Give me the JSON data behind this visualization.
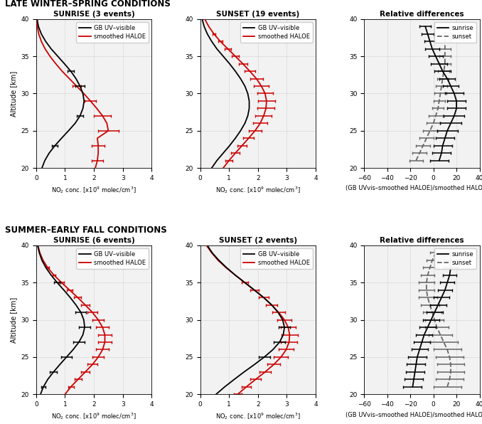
{
  "top_row_title": "LATE WINTER–SPRING CONDITIONS",
  "bottom_row_title": "SUMMER–EARLY FALL CONDITIONS",
  "subplot_titles": [
    [
      "SUNRISE (3 events)",
      "SUNSET (19 events)",
      "Relative differences"
    ],
    [
      "SUNRISE (6 events)",
      "SUNSET (2 events)",
      "Relative differences"
    ]
  ],
  "ylim": [
    20,
    40
  ],
  "yticks": [
    20,
    25,
    30,
    35,
    40
  ],
  "xlim_no2": [
    0,
    4
  ],
  "xticks_no2": [
    0,
    1,
    2,
    3,
    4
  ],
  "xlim_rel": [
    -60,
    40
  ],
  "xticks_rel": [
    -60,
    -40,
    -20,
    0,
    20,
    40
  ],
  "xlabel_no2": "NO$_2$ conc. [x10$^9$ molec/cm$^3$]",
  "xlabel_rel": "(GB UVvis–smoothed HALOE)/smoothed HALOE [%]",
  "ylabel": "Altitude [km]",
  "lw_profile": 1.3,
  "lw_err": 1.1,
  "top_sunrise": {
    "alt_gb": [
      20,
      21,
      22,
      23,
      24,
      25,
      26,
      27,
      28,
      29,
      30,
      31,
      32,
      33,
      34,
      35,
      36,
      37,
      38,
      39,
      40
    ],
    "gb": [
      0.2,
      0.3,
      0.45,
      0.65,
      0.88,
      1.12,
      1.35,
      1.52,
      1.62,
      1.66,
      1.62,
      1.52,
      1.38,
      1.2,
      0.98,
      0.75,
      0.52,
      0.33,
      0.18,
      0.08,
      0.03
    ],
    "gb_err_alts": [
      23,
      27,
      31,
      33
    ],
    "gb_err_vals": [
      0.65,
      1.52,
      1.52,
      1.2
    ],
    "gb_err_low": [
      0.1,
      0.12,
      0.15,
      0.12
    ],
    "gb_err_high": [
      0.1,
      0.12,
      0.15,
      0.12
    ],
    "alt_haloe": [
      20,
      21,
      22,
      23,
      24,
      25,
      26,
      27,
      28,
      29,
      30,
      31,
      32,
      33,
      34,
      35,
      36,
      37,
      38,
      39,
      40
    ],
    "haloe": [
      2.05,
      2.12,
      2.15,
      2.15,
      2.12,
      2.5,
      2.45,
      2.3,
      2.1,
      1.88,
      1.65,
      1.4,
      1.15,
      0.9,
      0.68,
      0.48,
      0.31,
      0.18,
      0.09,
      0.04,
      0.02
    ],
    "haloe_err_alts": [
      21,
      23,
      25,
      27,
      29,
      31
    ],
    "haloe_err_vals": [
      2.12,
      2.15,
      2.5,
      2.3,
      1.88,
      1.4
    ],
    "haloe_err_low": [
      0.2,
      0.22,
      0.35,
      0.3,
      0.2,
      0.15
    ],
    "haloe_err_high": [
      0.2,
      0.22,
      0.35,
      0.3,
      0.2,
      0.15
    ]
  },
  "top_sunset": {
    "alt_gb": [
      20,
      21,
      22,
      23,
      24,
      25,
      26,
      27,
      28,
      29,
      30,
      31,
      32,
      33,
      34,
      35,
      36,
      37,
      38,
      39,
      40
    ],
    "gb": [
      0.4,
      0.58,
      0.8,
      1.02,
      1.22,
      1.4,
      1.55,
      1.65,
      1.7,
      1.7,
      1.65,
      1.55,
      1.4,
      1.22,
      1.02,
      0.8,
      0.58,
      0.4,
      0.25,
      0.14,
      0.07
    ],
    "gb_err_alts": [],
    "gb_err_vals": [],
    "gb_err_low": [],
    "gb_err_high": [],
    "alt_haloe": [
      20,
      21,
      22,
      23,
      24,
      25,
      26,
      27,
      28,
      29,
      30,
      31,
      32,
      33,
      34,
      35,
      36,
      37,
      38,
      39,
      40
    ],
    "haloe": [
      0.8,
      1.0,
      1.22,
      1.45,
      1.68,
      1.9,
      2.08,
      2.2,
      2.28,
      2.3,
      2.25,
      2.12,
      1.95,
      1.72,
      1.48,
      1.22,
      0.96,
      0.7,
      0.48,
      0.3,
      0.16
    ],
    "haloe_err_alts": [
      21,
      22,
      23,
      24,
      25,
      26,
      27,
      28,
      29,
      30,
      31,
      32,
      33,
      34,
      35,
      36,
      37,
      38
    ],
    "haloe_err_vals": [
      1.0,
      1.22,
      1.45,
      1.68,
      1.9,
      2.08,
      2.2,
      2.28,
      2.3,
      2.25,
      2.12,
      1.95,
      1.72,
      1.48,
      1.22,
      0.96,
      0.7,
      0.48
    ],
    "haloe_err_low": [
      0.12,
      0.14,
      0.16,
      0.18,
      0.22,
      0.25,
      0.28,
      0.3,
      0.3,
      0.28,
      0.25,
      0.22,
      0.18,
      0.15,
      0.12,
      0.1,
      0.08,
      0.06
    ],
    "haloe_err_high": [
      0.12,
      0.14,
      0.16,
      0.18,
      0.22,
      0.25,
      0.28,
      0.3,
      0.3,
      0.28,
      0.25,
      0.22,
      0.18,
      0.15,
      0.12,
      0.1,
      0.08,
      0.06
    ]
  },
  "top_rel": {
    "sunrise_alt": [
      21,
      22,
      23,
      24,
      25,
      26,
      27,
      28,
      29,
      30,
      31,
      32,
      33,
      34,
      35,
      36,
      37,
      38,
      39
    ],
    "sunrise_val": [
      5,
      7,
      8,
      10,
      12,
      15,
      18,
      20,
      20,
      18,
      15,
      12,
      8,
      5,
      2,
      -1,
      -3,
      -5,
      -7
    ],
    "sunrise_err": [
      8,
      8,
      8,
      8,
      9,
      9,
      9,
      8,
      8,
      8,
      7,
      7,
      7,
      7,
      6,
      6,
      5,
      5,
      5
    ],
    "sunset_alt": [
      21,
      22,
      23,
      24,
      25,
      26,
      27,
      28,
      29,
      30,
      31,
      32,
      33,
      34,
      35,
      36,
      37,
      38,
      39
    ],
    "sunset_val": [
      -15,
      -12,
      -9,
      -6,
      -3,
      0,
      2,
      4,
      5,
      6,
      7,
      8,
      9,
      10,
      10,
      10,
      10,
      10,
      10
    ],
    "sunset_err": [
      6,
      6,
      6,
      6,
      6,
      6,
      6,
      5,
      5,
      5,
      5,
      5,
      5,
      5,
      5,
      5,
      5,
      5,
      5
    ]
  },
  "bot_sunrise": {
    "alt_gb": [
      20,
      21,
      22,
      23,
      24,
      25,
      26,
      27,
      28,
      29,
      30,
      31,
      32,
      33,
      34,
      35,
      36,
      37,
      38,
      39,
      40
    ],
    "gb": [
      0.15,
      0.25,
      0.4,
      0.6,
      0.82,
      1.05,
      1.28,
      1.48,
      1.62,
      1.68,
      1.65,
      1.55,
      1.38,
      1.18,
      0.96,
      0.73,
      0.52,
      0.34,
      0.2,
      0.11,
      0.05
    ],
    "gb_err_alts": [
      21,
      23,
      25,
      27,
      29,
      31,
      35
    ],
    "gb_err_vals": [
      0.25,
      0.6,
      1.05,
      1.48,
      1.68,
      1.55,
      0.73
    ],
    "gb_err_low": [
      0.08,
      0.12,
      0.18,
      0.2,
      0.2,
      0.18,
      0.1
    ],
    "gb_err_high": [
      0.08,
      0.12,
      0.18,
      0.2,
      0.2,
      0.18,
      0.1
    ],
    "alt_haloe": [
      20,
      21,
      22,
      23,
      24,
      25,
      26,
      27,
      28,
      29,
      30,
      31,
      32,
      33,
      34,
      35,
      36,
      37,
      38,
      39,
      40
    ],
    "haloe": [
      1.0,
      1.2,
      1.45,
      1.7,
      1.95,
      2.15,
      2.3,
      2.38,
      2.38,
      2.3,
      2.15,
      1.95,
      1.7,
      1.44,
      1.16,
      0.88,
      0.62,
      0.4,
      0.24,
      0.13,
      0.06
    ],
    "haloe_err_alts": [
      21,
      22,
      23,
      24,
      25,
      26,
      27,
      28,
      29,
      30,
      31,
      32,
      33,
      34,
      35,
      36,
      37
    ],
    "haloe_err_vals": [
      1.2,
      1.45,
      1.7,
      1.95,
      2.15,
      2.3,
      2.38,
      2.38,
      2.3,
      2.15,
      1.95,
      1.7,
      1.44,
      1.16,
      0.88,
      0.62,
      0.4
    ],
    "haloe_err_low": [
      0.1,
      0.12,
      0.15,
      0.18,
      0.2,
      0.22,
      0.24,
      0.24,
      0.22,
      0.2,
      0.18,
      0.15,
      0.12,
      0.1,
      0.08,
      0.06,
      0.05
    ],
    "haloe_err_high": [
      0.1,
      0.12,
      0.15,
      0.18,
      0.2,
      0.22,
      0.24,
      0.24,
      0.22,
      0.2,
      0.18,
      0.15,
      0.12,
      0.1,
      0.08,
      0.06,
      0.05
    ]
  },
  "bot_sunset": {
    "alt_gb": [
      20,
      21,
      22,
      23,
      24,
      25,
      26,
      27,
      28,
      29,
      30,
      31,
      32,
      33,
      34,
      35,
      36,
      37,
      38,
      39,
      40
    ],
    "gb": [
      0.55,
      0.85,
      1.18,
      1.52,
      1.88,
      2.22,
      2.52,
      2.75,
      2.88,
      2.92,
      2.86,
      2.7,
      2.48,
      2.2,
      1.88,
      1.55,
      1.22,
      0.92,
      0.65,
      0.42,
      0.25
    ],
    "gb_err_alts": [
      25,
      27,
      29
    ],
    "gb_err_vals": [
      2.22,
      2.75,
      2.92
    ],
    "gb_err_low": [
      0.2,
      0.2,
      0.2
    ],
    "gb_err_high": [
      0.2,
      0.2,
      0.2
    ],
    "alt_haloe": [
      20,
      21,
      22,
      23,
      24,
      25,
      26,
      27,
      28,
      29,
      30,
      31,
      32,
      33,
      34,
      35,
      36,
      37,
      38,
      39,
      40
    ],
    "haloe": [
      1.3,
      1.6,
      1.92,
      2.25,
      2.55,
      2.8,
      2.98,
      3.08,
      3.1,
      3.05,
      2.92,
      2.72,
      2.48,
      2.2,
      1.88,
      1.55,
      1.22,
      0.9,
      0.62,
      0.4,
      0.22
    ],
    "haloe_err_alts": [
      20,
      21,
      22,
      23,
      24,
      25,
      26,
      27,
      28,
      29,
      30,
      31,
      32,
      33,
      34,
      35
    ],
    "haloe_err_vals": [
      1.3,
      1.6,
      1.92,
      2.25,
      2.55,
      2.8,
      2.98,
      3.08,
      3.1,
      3.05,
      2.92,
      2.72,
      2.48,
      2.2,
      1.88,
      1.55
    ],
    "haloe_err_low": [
      0.14,
      0.16,
      0.18,
      0.2,
      0.22,
      0.24,
      0.26,
      0.28,
      0.28,
      0.26,
      0.24,
      0.22,
      0.2,
      0.18,
      0.15,
      0.12
    ],
    "haloe_err_high": [
      0.14,
      0.16,
      0.18,
      0.2,
      0.22,
      0.24,
      0.26,
      0.28,
      0.28,
      0.26,
      0.24,
      0.22,
      0.2,
      0.18,
      0.15,
      0.12
    ]
  },
  "bot_rel": {
    "sunrise_alt": [
      21,
      22,
      23,
      24,
      25,
      26,
      27,
      28,
      29,
      30,
      31,
      32,
      33,
      34,
      35,
      36,
      37,
      38,
      39
    ],
    "sunrise_val": [
      -18,
      -17,
      -16,
      -15,
      -14,
      -12,
      -10,
      -8,
      -5,
      -2,
      1,
      4,
      7,
      10,
      12,
      14,
      15,
      15,
      15
    ],
    "sunrise_err": [
      8,
      8,
      8,
      8,
      8,
      7,
      7,
      7,
      7,
      7,
      7,
      7,
      7,
      6,
      6,
      6,
      6,
      6,
      5
    ],
    "sunset_alt": [
      21,
      22,
      23,
      24,
      25,
      26,
      27,
      28,
      29,
      30,
      31,
      32,
      33,
      34,
      35,
      36,
      37,
      38,
      39
    ],
    "sunset_val": [
      12,
      14,
      15,
      15,
      14,
      12,
      9,
      6,
      3,
      1,
      -1,
      -3,
      -5,
      -6,
      -6,
      -5,
      -3,
      -1,
      2
    ],
    "sunset_err": [
      12,
      12,
      12,
      12,
      12,
      12,
      12,
      10,
      10,
      8,
      8,
      8,
      8,
      7,
      7,
      6,
      6,
      5,
      5
    ]
  },
  "color_gb": "#000000",
  "color_haloe": "#cc0000",
  "color_rel_sunrise": "#000000",
  "color_rel_sunset": "#666666",
  "grid_color": "#bbbbbb",
  "bg_color": "#f2f2f2"
}
